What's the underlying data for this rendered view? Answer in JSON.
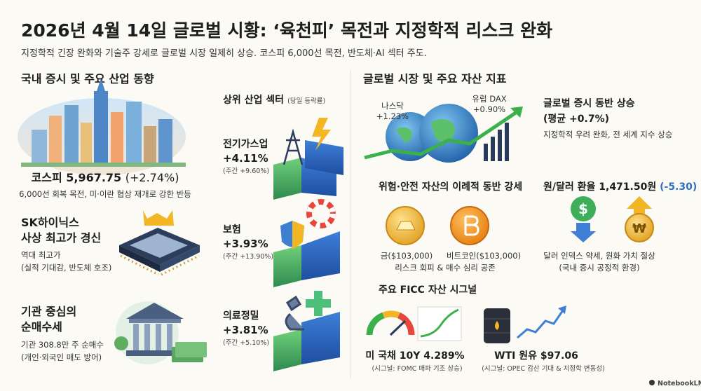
{
  "header": {
    "title": "2026년 4월 14일 글로벌 시황: ‘육천피’ 목전과 지정학적 리스크 완화",
    "subtitle": "지정학적 긴장 완화와 기술주 강세로 글로벌 시장 일제히 상승. 코스피 6,000선 목전, 반도체·AI 섹터 주도."
  },
  "domestic": {
    "title": "국내 증시 및 주요 산업 동향",
    "kospi": {
      "index": "코스피 5,967.75",
      "change": "(+2.74%)",
      "note": "6,000선 회복 목전, 미·이란 협상 재개로 강한 반등"
    },
    "hynix": {
      "title": [
        "SK하이닉스",
        "사상 최고가 경신"
      ],
      "note": [
        "역대 최고가",
        "(실적 기대감, 반도체 호조)"
      ]
    },
    "institution": {
      "title": [
        "기관 중심의",
        "순매수세"
      ],
      "note": [
        "기관 308.8만 주 순매수",
        "(개인·외국인 매도 방어)"
      ]
    }
  },
  "sectors": {
    "title": "상위 산업 섹터",
    "subtitle": "(당일 등락률)",
    "items": [
      {
        "name": "전기가스업",
        "change": "+4.11%",
        "weekly": "(주간 +9.60%)"
      },
      {
        "name": "보험",
        "change": "+3.93%",
        "weekly": "(주간 +13.90%)"
      },
      {
        "name": "의료정밀",
        "change": "+3.81%",
        "weekly": "(주간 +5.10%)"
      }
    ]
  },
  "global": {
    "title": "글로벌 시장 및 주요 자산 지표",
    "nasdaq": {
      "name": "나스닥",
      "change": "+1.23%"
    },
    "dax": {
      "name": "유럽 DAX",
      "change": "+0.90%"
    },
    "summary": {
      "title": [
        "글로벌 증시 동반 상승",
        "(평균 +0.7%)"
      ],
      "note": "지정학적 우려 완화, 전 세계 지수 상승"
    },
    "assets": {
      "title": "위험·안전 자산의 이례적 동반 강세",
      "items": [
        "금($103,000)",
        "비트코인($103,000)"
      ],
      "note": "리스크 회피 & 매수 심리 공존"
    },
    "fx": {
      "title": "원/달러 환율 1,471.50원",
      "change": "(-5.30)",
      "note": [
        "달러 인덱스 약세, 원화 가치 절상",
        "(국내 증시 공정적 환경)"
      ]
    },
    "ficc": {
      "title": "주요 FICC 자산 시그널",
      "items": [
        {
          "label": "미 국채 10Y 4.289%",
          "note": "(시그널: FOMC 매파 기조 상승)"
        },
        {
          "label": "WTI 원유 $97.06",
          "note": "(시그널: OPEC 감산 기대 & 지정학 변동성)"
        }
      ]
    }
  },
  "footer": {
    "brand": "NotebookLM"
  }
}
